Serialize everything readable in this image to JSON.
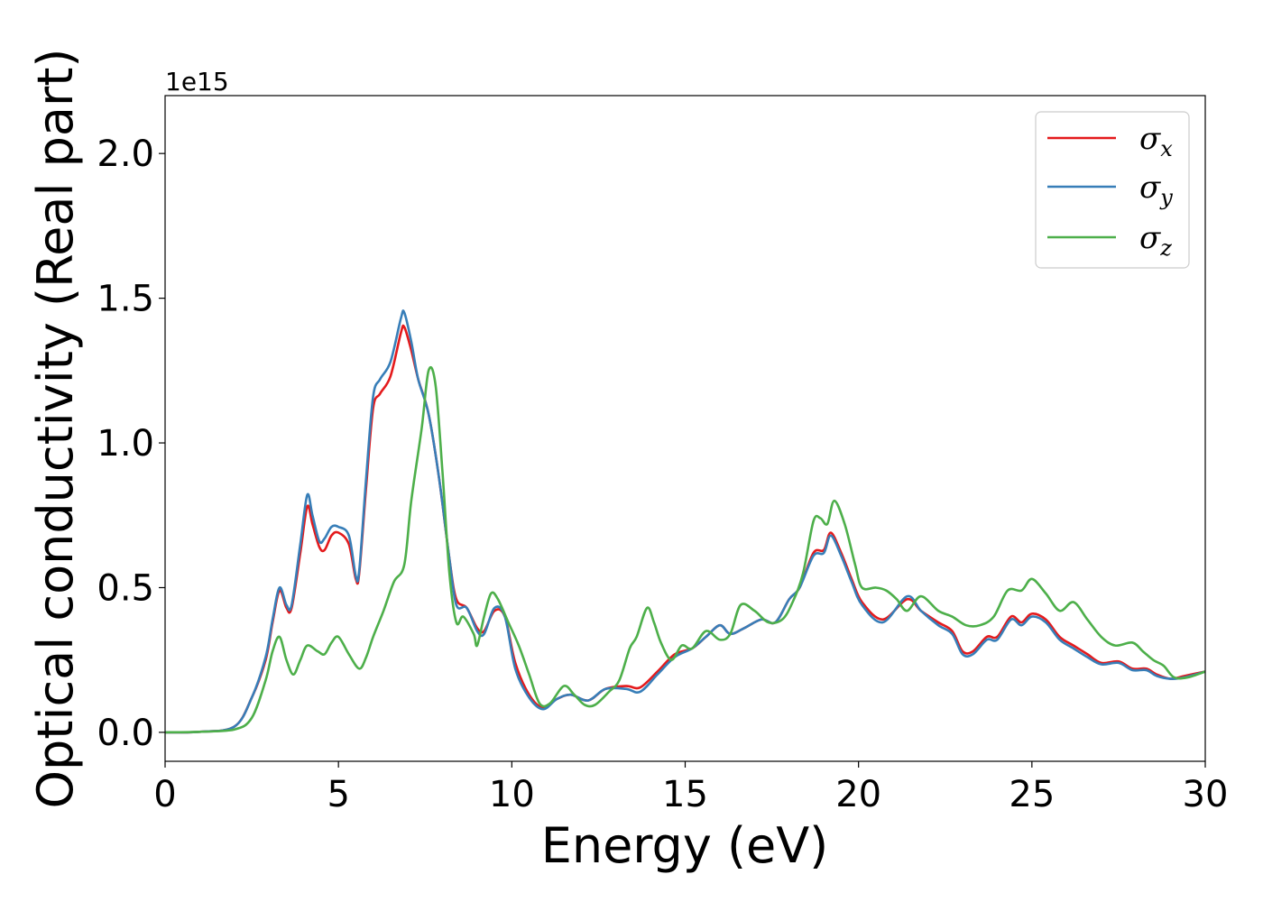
{
  "chart_data": {
    "type": "line",
    "title": "",
    "xlabel": "Energy (eV)",
    "ylabel": "Optical conductivity (Real part)",
    "y_offset_label": "1e15",
    "xlim": [
      0,
      30
    ],
    "ylim": [
      -0.1,
      2.2
    ],
    "xticks": [
      0,
      5,
      10,
      15,
      20,
      25,
      30
    ],
    "yticks": [
      0.0,
      0.5,
      1.0,
      1.5,
      2.0
    ],
    "xtick_labels": [
      "0",
      "5",
      "10",
      "15",
      "20",
      "25",
      "30"
    ],
    "ytick_labels": [
      "0.0",
      "0.5",
      "1.0",
      "1.5",
      "2.0"
    ],
    "grid": false,
    "legend_position": "top-right",
    "series": [
      {
        "name": "σ",
        "subscript": "x",
        "color": "#e41a1c",
        "points": [
          [
            0,
            0
          ],
          [
            1,
            0.002
          ],
          [
            2,
            0.02
          ],
          [
            2.5,
            0.12
          ],
          [
            2.9,
            0.25
          ],
          [
            3.1,
            0.38
          ],
          [
            3.3,
            0.49
          ],
          [
            3.5,
            0.43
          ],
          [
            3.65,
            0.43
          ],
          [
            3.9,
            0.62
          ],
          [
            4.1,
            0.78
          ],
          [
            4.25,
            0.72
          ],
          [
            4.45,
            0.64
          ],
          [
            4.6,
            0.63
          ],
          [
            4.8,
            0.68
          ],
          [
            5.0,
            0.69
          ],
          [
            5.3,
            0.65
          ],
          [
            5.5,
            0.53
          ],
          [
            5.6,
            0.55
          ],
          [
            5.8,
            0.85
          ],
          [
            6.0,
            1.12
          ],
          [
            6.2,
            1.17
          ],
          [
            6.5,
            1.23
          ],
          [
            6.8,
            1.38
          ],
          [
            6.9,
            1.4
          ],
          [
            7.1,
            1.32
          ],
          [
            7.3,
            1.22
          ],
          [
            7.6,
            1.1
          ],
          [
            7.9,
            0.88
          ],
          [
            8.2,
            0.6
          ],
          [
            8.4,
            0.46
          ],
          [
            8.7,
            0.43
          ],
          [
            9.0,
            0.36
          ],
          [
            9.2,
            0.35
          ],
          [
            9.5,
            0.42
          ],
          [
            9.8,
            0.4
          ],
          [
            10.1,
            0.24
          ],
          [
            10.5,
            0.13
          ],
          [
            10.9,
            0.085
          ],
          [
            11.3,
            0.115
          ],
          [
            11.7,
            0.13
          ],
          [
            12.2,
            0.11
          ],
          [
            12.7,
            0.15
          ],
          [
            13.3,
            0.16
          ],
          [
            13.7,
            0.155
          ],
          [
            14.2,
            0.21
          ],
          [
            14.7,
            0.27
          ],
          [
            15.2,
            0.29
          ],
          [
            15.6,
            0.33
          ],
          [
            16.0,
            0.37
          ],
          [
            16.3,
            0.34
          ],
          [
            16.7,
            0.36
          ],
          [
            17.2,
            0.39
          ],
          [
            17.6,
            0.38
          ],
          [
            18.0,
            0.46
          ],
          [
            18.3,
            0.5
          ],
          [
            18.7,
            0.62
          ],
          [
            19.0,
            0.63
          ],
          [
            19.2,
            0.69
          ],
          [
            19.5,
            0.62
          ],
          [
            19.8,
            0.53
          ],
          [
            20.1,
            0.45
          ],
          [
            20.7,
            0.39
          ],
          [
            21.4,
            0.46
          ],
          [
            21.8,
            0.42
          ],
          [
            22.3,
            0.38
          ],
          [
            22.7,
            0.35
          ],
          [
            23.0,
            0.28
          ],
          [
            23.3,
            0.28
          ],
          [
            23.7,
            0.33
          ],
          [
            24.0,
            0.33
          ],
          [
            24.4,
            0.4
          ],
          [
            24.7,
            0.38
          ],
          [
            25.0,
            0.41
          ],
          [
            25.4,
            0.39
          ],
          [
            25.8,
            0.33
          ],
          [
            26.2,
            0.3
          ],
          [
            26.6,
            0.27
          ],
          [
            27.0,
            0.24
          ],
          [
            27.5,
            0.245
          ],
          [
            27.9,
            0.22
          ],
          [
            28.3,
            0.22
          ],
          [
            28.6,
            0.2
          ],
          [
            29.0,
            0.185
          ],
          [
            29.4,
            0.195
          ],
          [
            30,
            0.21
          ]
        ]
      },
      {
        "name": "σ",
        "subscript": "y",
        "color": "#377eb8",
        "points": [
          [
            0,
            0
          ],
          [
            1,
            0.002
          ],
          [
            2,
            0.02
          ],
          [
            2.5,
            0.12
          ],
          [
            2.9,
            0.26
          ],
          [
            3.1,
            0.39
          ],
          [
            3.3,
            0.5
          ],
          [
            3.5,
            0.44
          ],
          [
            3.65,
            0.44
          ],
          [
            3.9,
            0.65
          ],
          [
            4.1,
            0.82
          ],
          [
            4.25,
            0.75
          ],
          [
            4.45,
            0.66
          ],
          [
            4.6,
            0.67
          ],
          [
            4.8,
            0.71
          ],
          [
            5.0,
            0.71
          ],
          [
            5.3,
            0.68
          ],
          [
            5.5,
            0.54
          ],
          [
            5.6,
            0.56
          ],
          [
            5.8,
            0.88
          ],
          [
            6.0,
            1.16
          ],
          [
            6.2,
            1.22
          ],
          [
            6.5,
            1.28
          ],
          [
            6.8,
            1.43
          ],
          [
            6.9,
            1.45
          ],
          [
            7.1,
            1.35
          ],
          [
            7.3,
            1.22
          ],
          [
            7.6,
            1.1
          ],
          [
            7.9,
            0.88
          ],
          [
            8.2,
            0.6
          ],
          [
            8.4,
            0.44
          ],
          [
            8.7,
            0.43
          ],
          [
            9.0,
            0.35
          ],
          [
            9.2,
            0.34
          ],
          [
            9.5,
            0.43
          ],
          [
            9.8,
            0.4
          ],
          [
            10.1,
            0.22
          ],
          [
            10.5,
            0.12
          ],
          [
            10.9,
            0.08
          ],
          [
            11.3,
            0.115
          ],
          [
            11.7,
            0.13
          ],
          [
            12.2,
            0.11
          ],
          [
            12.7,
            0.15
          ],
          [
            13.3,
            0.15
          ],
          [
            13.7,
            0.14
          ],
          [
            14.2,
            0.2
          ],
          [
            14.7,
            0.26
          ],
          [
            15.2,
            0.29
          ],
          [
            15.6,
            0.33
          ],
          [
            16.0,
            0.37
          ],
          [
            16.3,
            0.34
          ],
          [
            16.7,
            0.36
          ],
          [
            17.2,
            0.39
          ],
          [
            17.6,
            0.38
          ],
          [
            18.0,
            0.46
          ],
          [
            18.3,
            0.5
          ],
          [
            18.7,
            0.61
          ],
          [
            19.0,
            0.62
          ],
          [
            19.2,
            0.68
          ],
          [
            19.5,
            0.61
          ],
          [
            19.8,
            0.52
          ],
          [
            20.1,
            0.44
          ],
          [
            20.7,
            0.38
          ],
          [
            21.4,
            0.47
          ],
          [
            21.8,
            0.42
          ],
          [
            22.3,
            0.37
          ],
          [
            22.7,
            0.34
          ],
          [
            23.0,
            0.27
          ],
          [
            23.3,
            0.27
          ],
          [
            23.7,
            0.32
          ],
          [
            24.0,
            0.32
          ],
          [
            24.4,
            0.39
          ],
          [
            24.7,
            0.37
          ],
          [
            25.0,
            0.4
          ],
          [
            25.4,
            0.38
          ],
          [
            25.8,
            0.32
          ],
          [
            26.2,
            0.29
          ],
          [
            26.6,
            0.26
          ],
          [
            27.0,
            0.235
          ],
          [
            27.5,
            0.24
          ],
          [
            27.9,
            0.215
          ],
          [
            28.3,
            0.215
          ],
          [
            28.6,
            0.195
          ],
          [
            29.0,
            0.185
          ],
          [
            29.4,
            0.19
          ],
          [
            30,
            0.21
          ]
        ]
      },
      {
        "name": "σ",
        "subscript": "z",
        "color": "#4daf4a",
        "points": [
          [
            0,
            0
          ],
          [
            1,
            0.002
          ],
          [
            2,
            0.01
          ],
          [
            2.5,
            0.05
          ],
          [
            2.9,
            0.18
          ],
          [
            3.1,
            0.28
          ],
          [
            3.3,
            0.33
          ],
          [
            3.5,
            0.25
          ],
          [
            3.7,
            0.2
          ],
          [
            3.9,
            0.25
          ],
          [
            4.1,
            0.3
          ],
          [
            4.4,
            0.28
          ],
          [
            4.6,
            0.27
          ],
          [
            4.8,
            0.31
          ],
          [
            5.0,
            0.33
          ],
          [
            5.3,
            0.27
          ],
          [
            5.6,
            0.22
          ],
          [
            5.8,
            0.26
          ],
          [
            6.0,
            0.33
          ],
          [
            6.3,
            0.42
          ],
          [
            6.6,
            0.52
          ],
          [
            6.9,
            0.58
          ],
          [
            7.1,
            0.8
          ],
          [
            7.4,
            1.05
          ],
          [
            7.6,
            1.25
          ],
          [
            7.8,
            1.2
          ],
          [
            8.0,
            0.9
          ],
          [
            8.2,
            0.55
          ],
          [
            8.4,
            0.38
          ],
          [
            8.6,
            0.4
          ],
          [
            8.9,
            0.34
          ],
          [
            9.0,
            0.3
          ],
          [
            9.2,
            0.4
          ],
          [
            9.4,
            0.48
          ],
          [
            9.6,
            0.46
          ],
          [
            9.9,
            0.38
          ],
          [
            10.2,
            0.3
          ],
          [
            10.5,
            0.2
          ],
          [
            10.8,
            0.1
          ],
          [
            11.1,
            0.1
          ],
          [
            11.5,
            0.16
          ],
          [
            11.8,
            0.13
          ],
          [
            12.1,
            0.095
          ],
          [
            12.4,
            0.095
          ],
          [
            12.8,
            0.14
          ],
          [
            13.1,
            0.18
          ],
          [
            13.4,
            0.29
          ],
          [
            13.6,
            0.33
          ],
          [
            13.9,
            0.43
          ],
          [
            14.1,
            0.38
          ],
          [
            14.3,
            0.31
          ],
          [
            14.6,
            0.25
          ],
          [
            14.9,
            0.3
          ],
          [
            15.2,
            0.29
          ],
          [
            15.6,
            0.35
          ],
          [
            16.0,
            0.32
          ],
          [
            16.3,
            0.34
          ],
          [
            16.6,
            0.44
          ],
          [
            17.0,
            0.42
          ],
          [
            17.4,
            0.38
          ],
          [
            17.8,
            0.39
          ],
          [
            18.1,
            0.45
          ],
          [
            18.4,
            0.55
          ],
          [
            18.7,
            0.73
          ],
          [
            18.9,
            0.74
          ],
          [
            19.1,
            0.72
          ],
          [
            19.3,
            0.8
          ],
          [
            19.6,
            0.72
          ],
          [
            19.9,
            0.58
          ],
          [
            20.1,
            0.5
          ],
          [
            20.5,
            0.5
          ],
          [
            20.8,
            0.49
          ],
          [
            21.1,
            0.46
          ],
          [
            21.4,
            0.42
          ],
          [
            21.8,
            0.47
          ],
          [
            22.3,
            0.42
          ],
          [
            22.7,
            0.4
          ],
          [
            23.1,
            0.37
          ],
          [
            23.5,
            0.37
          ],
          [
            23.9,
            0.4
          ],
          [
            24.3,
            0.49
          ],
          [
            24.7,
            0.49
          ],
          [
            25.0,
            0.53
          ],
          [
            25.4,
            0.48
          ],
          [
            25.8,
            0.42
          ],
          [
            26.2,
            0.45
          ],
          [
            26.6,
            0.39
          ],
          [
            27.0,
            0.33
          ],
          [
            27.4,
            0.3
          ],
          [
            27.9,
            0.31
          ],
          [
            28.2,
            0.28
          ],
          [
            28.5,
            0.25
          ],
          [
            28.8,
            0.23
          ],
          [
            29.1,
            0.19
          ],
          [
            29.5,
            0.19
          ],
          [
            30,
            0.21
          ]
        ]
      }
    ]
  }
}
